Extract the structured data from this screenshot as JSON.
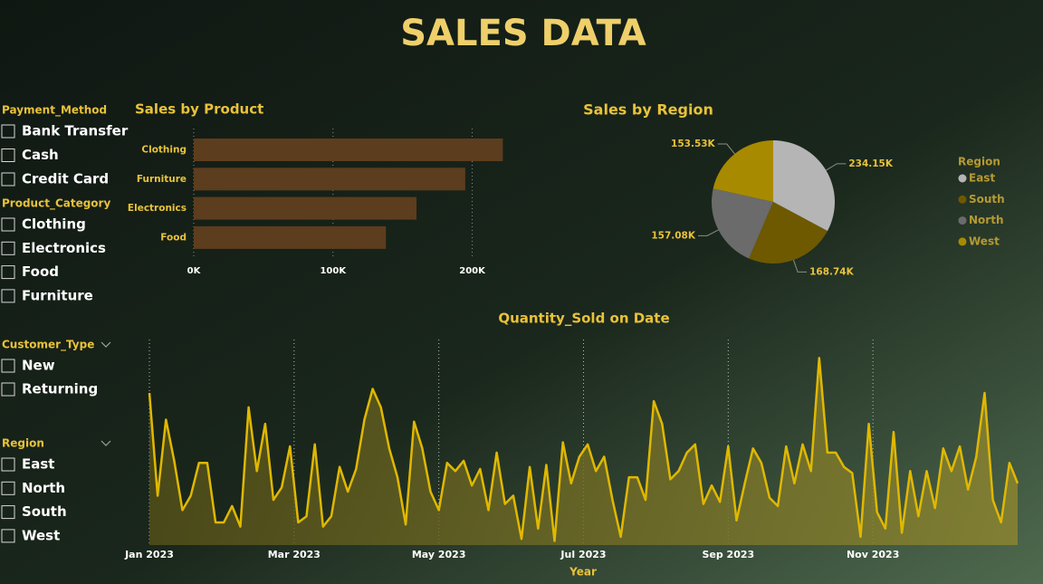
{
  "title": "SALES DATA",
  "slicers": [
    {
      "title": "Payment_Method",
      "items": [
        "Bank Transfer",
        "Cash",
        "Credit Card"
      ]
    },
    {
      "title": "Product_Category",
      "items": [
        "Clothing",
        "Electronics",
        "Food",
        "Furniture"
      ]
    },
    {
      "title": "Customer_Type",
      "items": [
        "New",
        "Returning"
      ]
    },
    {
      "title": "Region",
      "items": [
        "East",
        "North",
        "South",
        "West"
      ]
    }
  ],
  "chart_data": [
    {
      "type": "bar",
      "title": "Sales by Product",
      "orientation": "horizontal",
      "categories": [
        "Clothing",
        "Furniture",
        "Electronics",
        "Food"
      ],
      "values": [
        222000,
        195000,
        160000,
        138000
      ],
      "color": "#5c3d1e",
      "xlim": [
        0,
        225000
      ],
      "xticks": [
        {
          "value": 0,
          "label": "0K"
        },
        {
          "value": 100000,
          "label": "100K"
        },
        {
          "value": 200000,
          "label": "200K"
        }
      ],
      "grid": true
    },
    {
      "type": "pie",
      "title": "Sales by Region",
      "legend_title": "Region",
      "legend": "right",
      "categories": [
        "East",
        "South",
        "North",
        "West"
      ],
      "values": [
        234150,
        168740,
        157080,
        153530
      ],
      "value_labels": [
        "234.15K",
        "168.74K",
        "157.08K",
        "153.53K"
      ],
      "colors": [
        "#b5b5b5",
        "#6e5900",
        "#6b6b6b",
        "#a88a00"
      ]
    },
    {
      "type": "line",
      "title": "Quantity_Sold on Date",
      "xlabel": "Year",
      "color": "#e0b800",
      "area": true,
      "xlim": [
        "2023-01",
        "2024-01"
      ],
      "xticks": [
        {
          "value": "2023-01",
          "label": "Jan 2023"
        },
        {
          "value": "2023-03",
          "label": "Mar 2023"
        },
        {
          "value": "2023-05",
          "label": "May 2023"
        },
        {
          "value": "2023-07",
          "label": "Jul 2023"
        },
        {
          "value": "2023-09",
          "label": "Sep 2023"
        },
        {
          "value": "2023-11",
          "label": "Nov 2023"
        }
      ],
      "ylim": [
        0,
        10
      ],
      "grid": true,
      "values": [
        7.4,
        2.4,
        6.1,
        4.1,
        1.7,
        2.4,
        4.0,
        4.0,
        1.1,
        1.1,
        1.9,
        0.9,
        6.7,
        3.6,
        5.9,
        2.2,
        2.8,
        4.8,
        1.1,
        1.4,
        4.9,
        0.9,
        1.4,
        3.8,
        2.6,
        3.7,
        6.1,
        7.6,
        6.7,
        4.7,
        3.3,
        1.0,
        6.0,
        4.7,
        2.6,
        1.7,
        4.0,
        3.6,
        4.1,
        2.9,
        3.7,
        1.7,
        4.5,
        2.0,
        2.4,
        0.3,
        3.8,
        0.8,
        3.9,
        0.2,
        5.0,
        3.0,
        4.3,
        4.9,
        3.6,
        4.3,
        2.2,
        0.4,
        3.3,
        3.3,
        2.2,
        7.0,
        5.9,
        3.2,
        3.6,
        4.5,
        4.9,
        2.0,
        2.9,
        2.1,
        4.8,
        1.2,
        3.0,
        4.7,
        4.0,
        2.3,
        1.9,
        4.8,
        3.0,
        4.9,
        3.6,
        9.1,
        4.5,
        4.5,
        3.8,
        3.5,
        0.4,
        5.9,
        1.6,
        0.8,
        5.5,
        0.6,
        3.6,
        1.4,
        3.6,
        1.8,
        4.7,
        3.6,
        4.8,
        2.7,
        4.3,
        7.4,
        2.2,
        1.1,
        4.0,
        3.0
      ]
    }
  ]
}
